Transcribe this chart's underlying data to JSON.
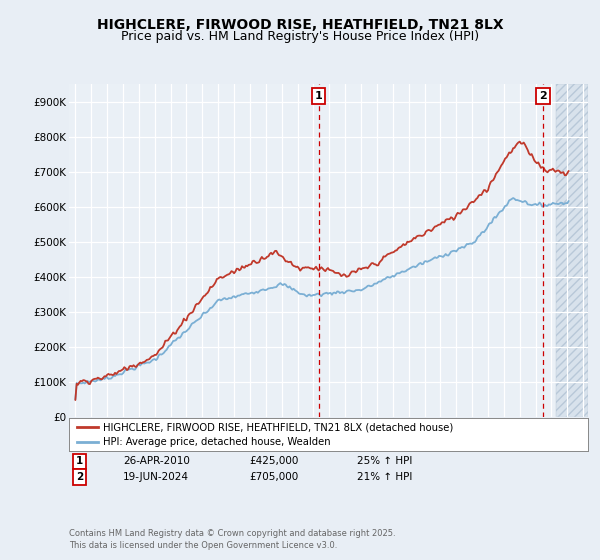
{
  "title": "HIGHCLERE, FIRWOOD RISE, HEATHFIELD, TN21 8LX",
  "subtitle": "Price paid vs. HM Land Registry's House Price Index (HPI)",
  "ylim": [
    0,
    950000
  ],
  "yticks": [
    0,
    100000,
    200000,
    300000,
    400000,
    500000,
    600000,
    700000,
    800000,
    900000
  ],
  "ytick_labels": [
    "£0",
    "£100K",
    "£200K",
    "£300K",
    "£400K",
    "£500K",
    "£600K",
    "£700K",
    "£800K",
    "£900K"
  ],
  "hpi_color": "#7bafd4",
  "price_color": "#c0392b",
  "marker1_date": 2010.32,
  "marker2_date": 2024.47,
  "marker1_label": "26-APR-2010",
  "marker1_amount": "£425,000",
  "marker1_hpi": "25% ↑ HPI",
  "marker2_label": "19-JUN-2024",
  "marker2_amount": "£705,000",
  "marker2_hpi": "21% ↑ HPI",
  "legend_line1": "HIGHCLERE, FIRWOOD RISE, HEATHFIELD, TN21 8LX (detached house)",
  "legend_line2": "HPI: Average price, detached house, Wealden",
  "footnote": "Contains HM Land Registry data © Crown copyright and database right 2025.\nThis data is licensed under the Open Government Licence v3.0.",
  "bg_color": "#e8eef5",
  "plot_bg": "#eaf0f6",
  "title_fontsize": 10,
  "subtitle_fontsize": 9
}
